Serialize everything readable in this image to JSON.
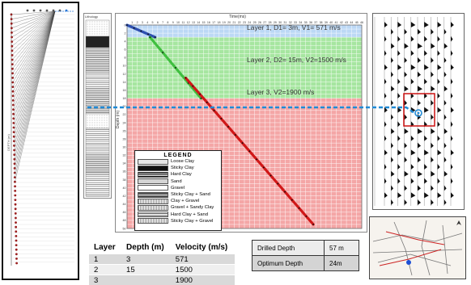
{
  "colors": {
    "layer1": "#bcd8f5",
    "layer2": "#a6e6a0",
    "layer3": "#f4a6a6",
    "line1": "#2e4fb0",
    "line2": "#3fbf3f",
    "line3": "#d01818",
    "connector": "#1f8ad6",
    "highlight_box": "#cc1111"
  },
  "chart": {
    "time_axis_title": "Time(ms)",
    "depth_axis_title": "Depth (m)",
    "layer_labels": [
      "Layer 1, D1= 3m, V1= 571 m/s",
      "Layer 2, D2= 15m, V2=1500 m/s",
      "Layer 3, V2=1900 m/s"
    ]
  },
  "chart_data": {
    "type": "line",
    "xlabel": "Time(ms)",
    "ylabel": "Depth (m)",
    "ylim": [
      0,
      50
    ],
    "layers": [
      {
        "label": "Layer 1",
        "top": 0,
        "bottom": 3,
        "velocity": 571
      },
      {
        "label": "Layer 2",
        "top": 3,
        "bottom": 18,
        "velocity": 1500
      },
      {
        "label": "Layer 3",
        "top": 18,
        "bottom": 50,
        "velocity": 1900
      }
    ],
    "series": [
      {
        "x": [
          0,
          5.5
        ],
        "y": [
          0,
          3
        ]
      },
      {
        "x": [
          4.5,
          14.5
        ],
        "y": [
          3,
          18
        ]
      },
      {
        "x": [
          11.5,
          36.5
        ],
        "y": [
          13,
          49
        ]
      }
    ]
  },
  "legend": {
    "title": "LEGEND",
    "items": [
      {
        "label": "Loose Clay",
        "pattern": "dots-fine"
      },
      {
        "label": "Sticky Clay",
        "pattern": "black"
      },
      {
        "label": "Hard Clay",
        "pattern": "dark-hatch"
      },
      {
        "label": "Sand",
        "pattern": "dots"
      },
      {
        "label": "Gravel",
        "pattern": "white"
      },
      {
        "label": "Sticky Clay + Sand",
        "pattern": "dark-hatch"
      },
      {
        "label": "Clay + Gravel",
        "pattern": "hatch"
      },
      {
        "label": "Gravel + Sandy Clay",
        "pattern": "hatch"
      },
      {
        "label": "Hard Clay + Sand",
        "pattern": "stripes"
      },
      {
        "label": "Sticky Clay + Gravel",
        "pattern": "hatch"
      }
    ]
  },
  "strat_column": {
    "title": "Lithology"
  },
  "layer_table": {
    "headers": [
      "Layer",
      "Depth (m)",
      "Velocity (m/s)"
    ],
    "rows": [
      [
        "1",
        "3",
        "571"
      ],
      [
        "2",
        "15",
        "1500"
      ],
      [
        "3",
        "",
        "1900"
      ]
    ]
  },
  "depth_table": {
    "rows": [
      {
        "label": "Drilled Depth",
        "value": "57 m"
      },
      {
        "label": "Optimum Depth",
        "value": "24m"
      }
    ]
  },
  "left_panel": {
    "axis_title": "DEPTH (m)"
  }
}
